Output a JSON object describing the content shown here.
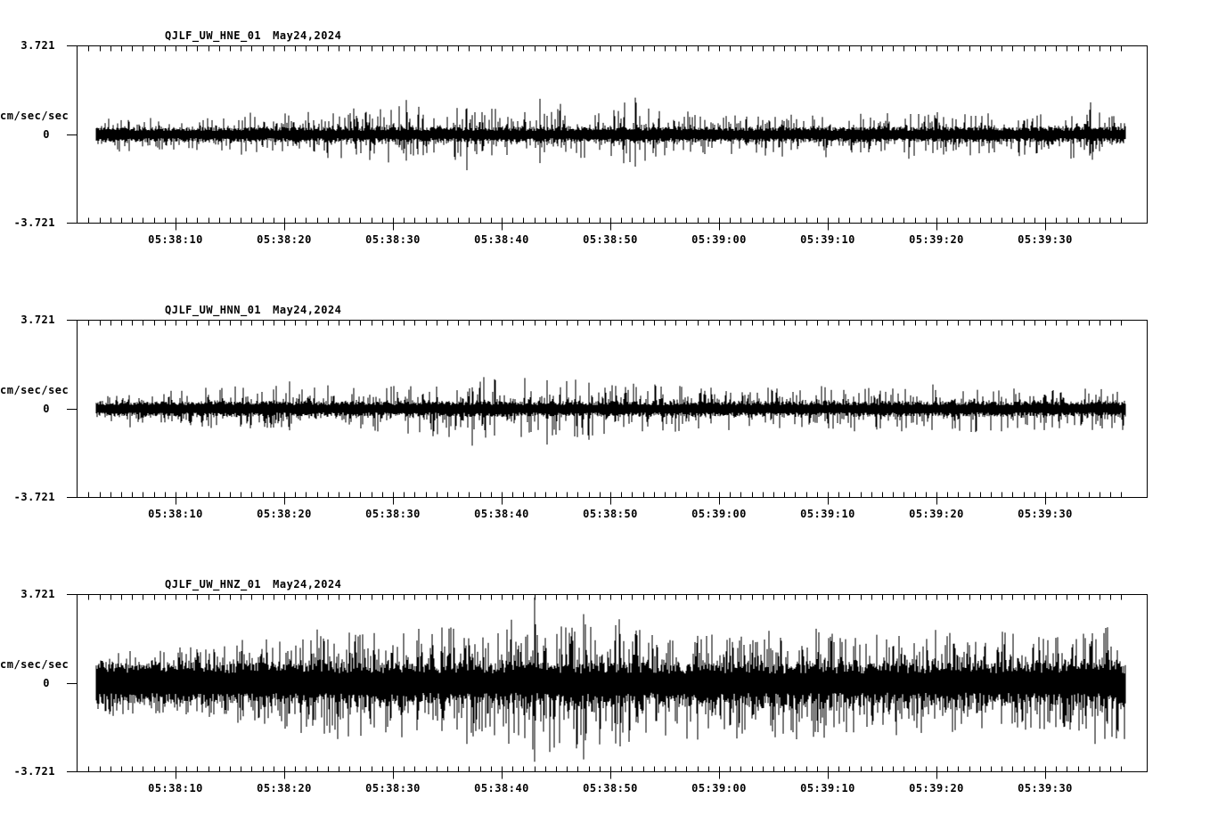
{
  "page": {
    "background": "#ffffff",
    "ink": "#000000",
    "kind": "strong-motion seismogram display, 3 channels"
  },
  "chart_data": [
    {
      "type": "line",
      "subtype": "seismogram",
      "station": "QJLF_UW_HNE_01",
      "date": "May24,2024",
      "ylabel": "cm/sec/sec",
      "ytick_labels": [
        "3.721",
        "0",
        "-3.721"
      ],
      "ylim": [
        -3.721,
        3.721
      ],
      "xticks": [
        "05:38:10",
        "05:38:20",
        "05:38:30",
        "05:38:40",
        "05:38:50",
        "05:39:00",
        "05:39:10",
        "05:39:20",
        "05:39:30"
      ],
      "x_window": {
        "start": "05:38:02",
        "end": "05:39:38",
        "minor_tick_sec": 1,
        "major_tick_sec": 10
      },
      "grid": false,
      "legend": "none",
      "trace_color": "#000000",
      "noise_core_amplitude": 0.3,
      "spike_exponent": 6,
      "envelope_peaks_t_amp": [
        [
          0,
          0.85
        ],
        [
          6,
          0.75
        ],
        [
          12,
          0.8
        ],
        [
          18,
          0.95
        ],
        [
          24,
          1.05
        ],
        [
          29,
          1.35
        ],
        [
          33,
          1.2
        ],
        [
          37,
          1.35
        ],
        [
          41,
          1.15
        ],
        [
          44,
          1.4
        ],
        [
          48,
          1.2
        ],
        [
          52,
          1.5
        ],
        [
          55,
          1.05
        ],
        [
          60,
          0.95
        ],
        [
          66,
          1.0
        ],
        [
          72,
          0.95
        ],
        [
          78,
          1.05
        ],
        [
          84,
          0.95
        ],
        [
          90,
          0.95
        ],
        [
          94,
          1.25
        ],
        [
          100,
          0.95
        ]
      ],
      "notable_spikes_t_up_down": [
        [
          31.2,
          1.45,
          1.1
        ],
        [
          36.8,
          1.1,
          1.5
        ],
        [
          43.5,
          1.5,
          1.2
        ],
        [
          52.3,
          1.55,
          1.35
        ],
        [
          94.2,
          1.35,
          0.8
        ]
      ],
      "seed": 11
    },
    {
      "type": "line",
      "subtype": "seismogram",
      "station": "QJLF_UW_HNN_01",
      "date": "May24,2024",
      "ylabel": "cm/sec/sec",
      "ytick_labels": [
        "3.721",
        "0",
        "-3.721"
      ],
      "ylim": [
        -3.721,
        3.721
      ],
      "xticks": [
        "05:38:10",
        "05:38:20",
        "05:38:30",
        "05:38:40",
        "05:38:50",
        "05:39:00",
        "05:39:10",
        "05:39:20",
        "05:39:30"
      ],
      "x_window": {
        "start": "05:38:02",
        "end": "05:39:38",
        "minor_tick_sec": 1,
        "major_tick_sec": 10
      },
      "grid": false,
      "legend": "none",
      "trace_color": "#000000",
      "noise_core_amplitude": 0.3,
      "spike_exponent": 6,
      "envelope_peaks_t_amp": [
        [
          0,
          0.8
        ],
        [
          8,
          0.85
        ],
        [
          14,
          0.95
        ],
        [
          20,
          1.15
        ],
        [
          25,
          0.95
        ],
        [
          30,
          1.05
        ],
        [
          35,
          1.3
        ],
        [
          39,
          1.45
        ],
        [
          43,
          1.25
        ],
        [
          47,
          1.35
        ],
        [
          51,
          1.15
        ],
        [
          56,
          1.05
        ],
        [
          62,
          0.95
        ],
        [
          68,
          1.0
        ],
        [
          74,
          0.95
        ],
        [
          80,
          1.05
        ],
        [
          86,
          1.1
        ],
        [
          92,
          0.95
        ],
        [
          100,
          1.0
        ]
      ],
      "notable_spikes_t_up_down": [
        [
          20.5,
          1.15,
          0.9
        ],
        [
          37.3,
          0.9,
          1.55
        ],
        [
          44.2,
          1.2,
          1.5
        ],
        [
          48.0,
          1.1,
          1.3
        ]
      ],
      "seed": 22
    },
    {
      "type": "line",
      "subtype": "seismogram",
      "station": "QJLF_UW_HNZ_01",
      "date": "May24,2024",
      "ylabel": "cm/sec/sec",
      "ytick_labels": [
        "3.721",
        "0",
        "-3.721"
      ],
      "ylim": [
        -3.721,
        3.721
      ],
      "xticks": [
        "05:38:10",
        "05:38:20",
        "05:38:30",
        "05:38:40",
        "05:38:50",
        "05:39:00",
        "05:39:10",
        "05:39:20",
        "05:39:30"
      ],
      "x_window": {
        "start": "05:38:02",
        "end": "05:39:38",
        "minor_tick_sec": 1,
        "major_tick_sec": 10
      },
      "grid": false,
      "legend": "none",
      "trace_color": "#000000",
      "noise_core_amplitude": 0.8,
      "spike_exponent": 3.5,
      "envelope_peaks_t_amp": [
        [
          0,
          1.3
        ],
        [
          6,
          1.4
        ],
        [
          12,
          1.55
        ],
        [
          18,
          1.9
        ],
        [
          24,
          2.5
        ],
        [
          30,
          2.35
        ],
        [
          35,
          2.7
        ],
        [
          39,
          2.45
        ],
        [
          43,
          3.0
        ],
        [
          47,
          2.75
        ],
        [
          51,
          2.85
        ],
        [
          55,
          2.5
        ],
        [
          60,
          2.45
        ],
        [
          65,
          2.35
        ],
        [
          70,
          2.5
        ],
        [
          75,
          2.2
        ],
        [
          80,
          2.4
        ],
        [
          85,
          2.15
        ],
        [
          90,
          2.35
        ],
        [
          95,
          2.6
        ],
        [
          100,
          2.5
        ]
      ],
      "notable_spikes_t_up_down": [
        [
          43.0,
          3.6,
          3.3
        ],
        [
          47.5,
          2.9,
          3.2
        ]
      ],
      "seed": 33
    }
  ]
}
